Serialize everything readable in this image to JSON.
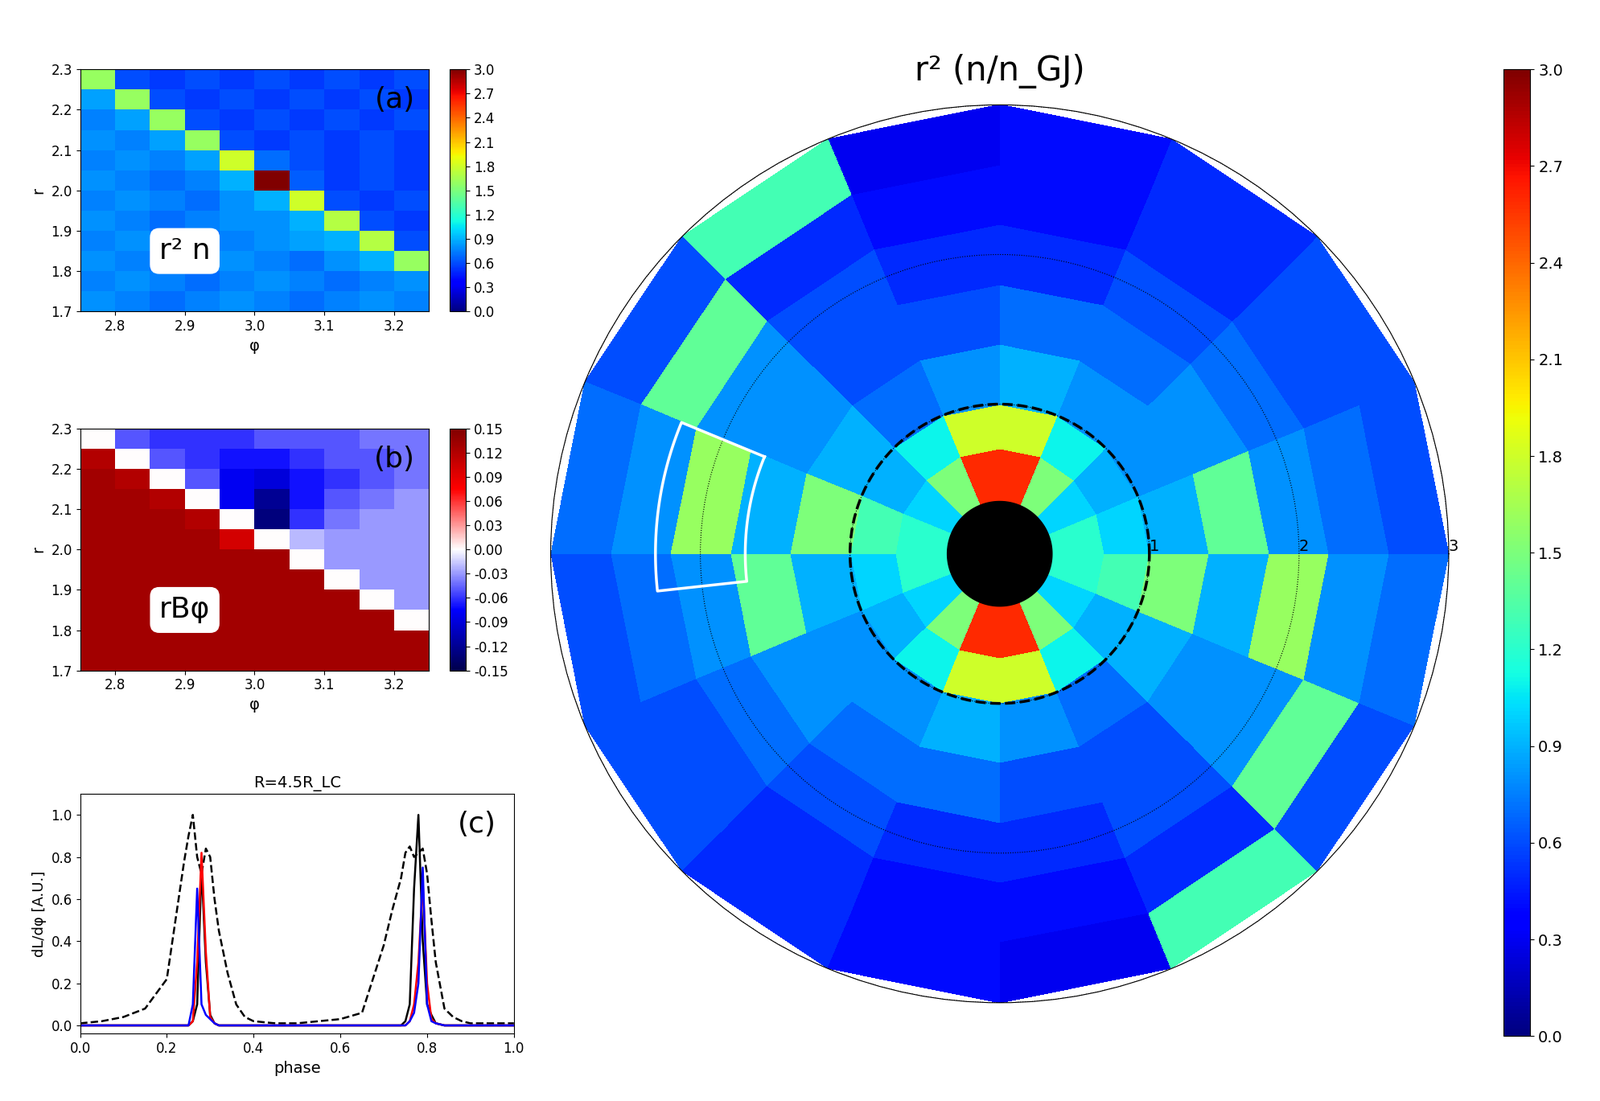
{
  "chart_data": [
    {
      "type": "heatmap",
      "color": "jet",
      "label": "(a)",
      "annotation": "r² n",
      "xlabel": "φ",
      "ylabel": "r",
      "xlim": [
        2.75,
        3.25
      ],
      "xticks": [
        2.8,
        2.9,
        3.0,
        3.1,
        3.2
      ],
      "ylim": [
        1.7,
        2.3
      ],
      "yticks": [
        1.7,
        1.8,
        1.9,
        2.0,
        2.1,
        2.2,
        2.3
      ],
      "x_edges": [
        2.75,
        2.8,
        2.85,
        2.9,
        2.95,
        3.0,
        3.05,
        3.1,
        3.15,
        3.2,
        3.25
      ],
      "y_edges": [
        1.7,
        1.75,
        1.8,
        1.85,
        1.9,
        1.95,
        2.0,
        2.05,
        2.1,
        2.15,
        2.2,
        2.25,
        2.3
      ],
      "cells": [
        [
          0.8,
          0.75,
          0.7,
          0.75,
          0.8,
          0.75,
          0.7,
          0.75,
          0.8,
          0.75
        ],
        [
          0.75,
          0.8,
          0.75,
          0.7,
          0.75,
          0.8,
          0.75,
          0.7,
          0.75,
          0.8
        ],
        [
          0.8,
          0.75,
          0.7,
          0.75,
          0.8,
          0.75,
          0.7,
          0.8,
          0.9,
          1.6
        ],
        [
          0.75,
          0.8,
          0.75,
          0.7,
          0.75,
          0.8,
          0.85,
          0.9,
          1.7,
          0.6
        ],
        [
          0.8,
          0.75,
          0.7,
          0.75,
          0.8,
          0.8,
          0.9,
          1.7,
          0.6,
          0.55
        ],
        [
          0.75,
          0.8,
          0.75,
          0.7,
          0.8,
          0.9,
          1.8,
          0.6,
          0.55,
          0.6
        ],
        [
          0.8,
          0.75,
          0.7,
          0.75,
          0.9,
          3.0,
          0.65,
          0.55,
          0.6,
          0.55
        ],
        [
          0.75,
          0.8,
          0.75,
          0.85,
          1.8,
          0.7,
          0.6,
          0.55,
          0.6,
          0.55
        ],
        [
          0.8,
          0.75,
          0.85,
          1.6,
          0.6,
          0.55,
          0.6,
          0.55,
          0.6,
          0.55
        ],
        [
          0.75,
          0.85,
          1.6,
          0.6,
          0.55,
          0.6,
          0.55,
          0.6,
          0.55,
          0.6
        ],
        [
          0.85,
          1.6,
          0.6,
          0.55,
          0.6,
          0.55,
          0.6,
          0.55,
          0.6,
          0.55
        ],
        [
          1.6,
          0.6,
          0.55,
          0.6,
          0.55,
          0.6,
          0.55,
          0.6,
          0.55,
          0.6
        ]
      ],
      "colorbar": {
        "range": [
          0.0,
          3.0
        ],
        "ticks": [
          0.0,
          0.3,
          0.6,
          0.9,
          1.2,
          1.5,
          1.8,
          2.1,
          2.4,
          2.7,
          3.0
        ]
      }
    },
    {
      "type": "heatmap",
      "color": "seismic",
      "label": "(b)",
      "annotation": "rBφ",
      "xlabel": "φ",
      "ylabel": "r",
      "xlim": [
        2.75,
        3.25
      ],
      "xticks": [
        2.8,
        2.9,
        3.0,
        3.1,
        3.2
      ],
      "ylim": [
        1.7,
        2.3
      ],
      "yticks": [
        1.7,
        1.8,
        1.9,
        2.0,
        2.1,
        2.2,
        2.3
      ],
      "x_edges": [
        2.75,
        2.8,
        2.85,
        2.9,
        2.95,
        3.0,
        3.05,
        3.1,
        3.15,
        3.2,
        3.25
      ],
      "y_edges": [
        1.7,
        1.75,
        1.8,
        1.85,
        1.9,
        1.95,
        2.0,
        2.05,
        2.1,
        2.15,
        2.2,
        2.25,
        2.3
      ],
      "cells": [
        [
          0.13,
          0.13,
          0.13,
          0.13,
          0.13,
          0.13,
          0.13,
          0.13,
          0.13,
          0.13
        ],
        [
          0.13,
          0.13,
          0.13,
          0.13,
          0.13,
          0.13,
          0.13,
          0.13,
          0.13,
          0.13
        ],
        [
          0.13,
          0.13,
          0.13,
          0.13,
          0.13,
          0.13,
          0.13,
          0.13,
          0.13,
          0.0
        ],
        [
          0.13,
          0.13,
          0.13,
          0.13,
          0.13,
          0.13,
          0.13,
          0.13,
          0.0,
          -0.03
        ],
        [
          0.13,
          0.13,
          0.13,
          0.13,
          0.13,
          0.13,
          0.13,
          0.0,
          -0.03,
          -0.03
        ],
        [
          0.13,
          0.13,
          0.13,
          0.13,
          0.13,
          0.13,
          0.0,
          -0.03,
          -0.03,
          -0.03
        ],
        [
          0.13,
          0.13,
          0.13,
          0.13,
          0.1,
          0.0,
          -0.02,
          -0.03,
          -0.03,
          -0.03
        ],
        [
          0.13,
          0.13,
          0.13,
          0.12,
          0.0,
          -0.13,
          -0.06,
          -0.04,
          -0.03,
          -0.03
        ],
        [
          0.13,
          0.13,
          0.12,
          0.0,
          -0.08,
          -0.12,
          -0.07,
          -0.05,
          -0.04,
          -0.03
        ],
        [
          0.13,
          0.12,
          0.0,
          -0.05,
          -0.08,
          -0.09,
          -0.07,
          -0.06,
          -0.05,
          -0.04
        ],
        [
          0.12,
          0.0,
          -0.05,
          -0.06,
          -0.07,
          -0.07,
          -0.06,
          -0.05,
          -0.05,
          -0.04
        ],
        [
          0.0,
          -0.05,
          -0.06,
          -0.06,
          -0.06,
          -0.05,
          -0.05,
          -0.05,
          -0.04,
          -0.04
        ]
      ],
      "colorbar": {
        "range": [
          -0.15,
          0.15
        ],
        "ticks": [
          -0.15,
          -0.12,
          -0.09,
          -0.06,
          -0.03,
          {
            "value": 0.0,
            "label": "0.00"
          },
          0.03,
          0.06,
          0.09,
          0.12,
          0.15
        ]
      }
    },
    {
      "type": "line",
      "label": "(c)",
      "title": "R=4.5R_LC",
      "xlabel": "phase",
      "ylabel": "dL/dφ [A.U.]",
      "xlim": [
        0.0,
        1.0
      ],
      "xticks": [
        0.0,
        0.2,
        0.4,
        0.6,
        0.8,
        1.0
      ],
      "ylim": [
        -0.04,
        1.1
      ],
      "yticks": [
        0.0,
        0.2,
        0.4,
        0.6,
        0.8,
        1.0
      ],
      "x": [
        0,
        0.05,
        0.1,
        0.15,
        0.2,
        0.22,
        0.24,
        0.25,
        0.26,
        0.27,
        0.28,
        0.29,
        0.3,
        0.31,
        0.32,
        0.34,
        0.36,
        0.38,
        0.4,
        0.45,
        0.5,
        0.55,
        0.6,
        0.65,
        0.7,
        0.72,
        0.74,
        0.75,
        0.76,
        0.77,
        0.78,
        0.79,
        0.8,
        0.81,
        0.82,
        0.84,
        0.86,
        0.88,
        0.9,
        0.95,
        1.0
      ],
      "series": [
        {
          "color": "black",
          "line_style": "dashed",
          "values": [
            0.01,
            0.02,
            0.04,
            0.08,
            0.22,
            0.5,
            0.78,
            0.9,
            1.0,
            0.8,
            0.72,
            0.84,
            0.8,
            0.6,
            0.45,
            0.25,
            0.1,
            0.04,
            0.02,
            0.01,
            0.01,
            0.02,
            0.03,
            0.06,
            0.38,
            0.55,
            0.7,
            0.82,
            0.85,
            0.8,
            0.82,
            0.84,
            0.72,
            0.5,
            0.3,
            0.08,
            0.04,
            0.02,
            0.01,
            0.01,
            0.01
          ]
        },
        {
          "color": "black",
          "line_style": "solid",
          "values": [
            0,
            0,
            0,
            0,
            0,
            0,
            0,
            0,
            0.02,
            0.1,
            0.75,
            0.3,
            0.05,
            0.01,
            0,
            0,
            0,
            0,
            0,
            0,
            0,
            0,
            0,
            0,
            0,
            0,
            0,
            0.02,
            0.1,
            0.65,
            1.0,
            0.4,
            0.1,
            0.05,
            0.01,
            0,
            0,
            0,
            0,
            0,
            0
          ]
        },
        {
          "color": "red",
          "line_style": "solid",
          "values": [
            0,
            0,
            0,
            0,
            0,
            0,
            0,
            0,
            0.02,
            0.3,
            0.82,
            0.35,
            0.04,
            0.01,
            0,
            0,
            0,
            0,
            0,
            0,
            0,
            0,
            0,
            0,
            0,
            0,
            0,
            0,
            0.02,
            0.1,
            0.3,
            0.68,
            0.2,
            0.03,
            0.01,
            0,
            0,
            0,
            0,
            0,
            0
          ]
        },
        {
          "color": "blue",
          "line_style": "solid",
          "values": [
            0,
            0,
            0,
            0,
            0,
            0,
            0,
            0,
            0.1,
            0.65,
            0.1,
            0.05,
            0.03,
            0.01,
            0,
            0,
            0,
            0,
            0,
            0,
            0,
            0,
            0,
            0,
            0,
            0,
            0,
            0,
            0.02,
            0.06,
            0.2,
            0.75,
            0.1,
            0.02,
            0.01,
            0,
            0,
            0,
            0,
            0,
            0
          ]
        }
      ]
    },
    {
      "type": "polar_heatmap",
      "color": "jet",
      "title": "r² (n/n_GJ)",
      "tick_labels": "y",
      "ylim": [
        0,
        3
      ],
      "yticks": [
        1,
        2,
        3
      ],
      "theta_edges": [
        0,
        22.5,
        45,
        67.5,
        90,
        112.5,
        135,
        157.5,
        180,
        202.5,
        225,
        247.5,
        270,
        292.5,
        315,
        337.5,
        360
      ],
      "r_edges": [
        0.35,
        0.7,
        1.0,
        1.4,
        1.8,
        2.2,
        2.6,
        3.0
      ],
      "cells": [
        [
          1.2,
          1.0,
          1.5,
          2.6,
          2.6,
          1.5,
          1.0,
          1.2,
          1.2,
          1.0,
          1.5,
          2.6,
          2.6,
          1.5,
          1.0,
          1.2
        ],
        [
          1.0,
          0.9,
          1.1,
          1.8,
          1.8,
          1.1,
          0.9,
          1.3,
          1.0,
          0.9,
          1.1,
          1.8,
          1.8,
          1.1,
          0.9,
          1.3
        ],
        [
          0.9,
          0.8,
          0.8,
          0.9,
          0.8,
          0.7,
          0.9,
          1.5,
          0.9,
          0.8,
          0.8,
          0.9,
          0.8,
          0.7,
          0.9,
          1.5
        ],
        [
          1.4,
          0.8,
          0.7,
          0.7,
          0.6,
          0.6,
          0.8,
          0.9,
          1.4,
          0.8,
          0.7,
          0.7,
          0.6,
          0.6,
          0.8,
          0.9
        ],
        [
          0.8,
          0.7,
          0.6,
          0.5,
          0.5,
          0.6,
          0.8,
          1.6,
          0.8,
          0.7,
          0.6,
          0.5,
          0.5,
          0.6,
          0.8,
          1.6
        ],
        [
          0.7,
          0.6,
          0.5,
          0.4,
          0.4,
          0.5,
          1.4,
          0.8,
          0.7,
          0.6,
          0.5,
          0.4,
          0.4,
          0.5,
          1.4,
          0.8
        ],
        [
          0.6,
          0.6,
          0.5,
          0.4,
          0.3,
          1.3,
          0.6,
          0.7,
          0.6,
          0.6,
          0.5,
          0.4,
          0.3,
          1.3,
          0.6,
          0.7
        ]
      ],
      "colorbar": {
        "range": [
          0.0,
          3.0
        ],
        "ticks": [
          0.0,
          0.3,
          0.6,
          0.9,
          1.2,
          1.5,
          1.8,
          2.1,
          2.4,
          2.7,
          3.0
        ]
      }
    }
  ]
}
